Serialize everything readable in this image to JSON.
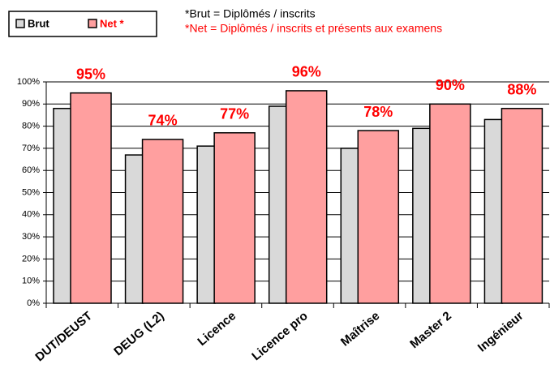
{
  "chart_data": {
    "type": "bar",
    "categories": [
      "DUT/DEUST",
      "DEUG (L2)",
      "Licence",
      "Licence pro",
      "Maîtrise",
      "Master 2",
      "Ingénieur"
    ],
    "series": [
      {
        "name": "Brut",
        "color": "#d9d9d9",
        "values": [
          88,
          67,
          71,
          89,
          70,
          79,
          83
        ]
      },
      {
        "name": "Net *",
        "color": "#ff9f9f",
        "values": [
          95,
          74,
          77,
          96,
          78,
          90,
          88
        ],
        "value_labels": [
          "95%",
          "74%",
          "77%",
          "96%",
          "78%",
          "90%",
          "88%"
        ],
        "label_color": "#ff0000"
      }
    ],
    "annotations": [
      {
        "text": "*Brut = Diplômés / inscrits",
        "color": "#000000"
      },
      {
        "text": "*Net = Diplômés / inscrits et présents aux examens",
        "color": "#ff0000"
      }
    ],
    "ylim": [
      0,
      100
    ],
    "yticks": [
      {
        "value": 0,
        "label": "0%"
      },
      {
        "value": 10,
        "label": "10%"
      },
      {
        "value": 20,
        "label": "20%"
      },
      {
        "value": 30,
        "label": "30%"
      },
      {
        "value": 40,
        "label": "40%"
      },
      {
        "value": 50,
        "label": "50%"
      },
      {
        "value": 60,
        "label": "60%"
      },
      {
        "value": 70,
        "label": "70%"
      },
      {
        "value": 80,
        "label": "80%"
      },
      {
        "value": 90,
        "label": "90%"
      },
      {
        "value": 100,
        "label": "100%"
      }
    ],
    "grid": true,
    "legend": "top-left"
  }
}
